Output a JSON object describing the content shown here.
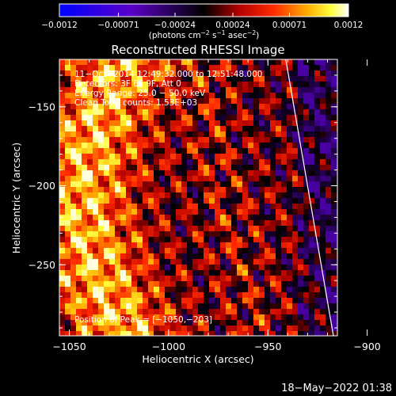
{
  "chart_data": {
    "type": "heatmap",
    "title": "Reconstructed RHESSI Image",
    "xlabel": "Heliocentric X (arcsec)",
    "ylabel": "Heliocentric Y (arcsec)",
    "xlim": [
      -1055,
      -915
    ],
    "ylim": [
      -295,
      -120
    ],
    "x_ticks": [
      {
        "value": -1050,
        "label": "−1050"
      },
      {
        "value": -1000,
        "label": "−1000"
      },
      {
        "value": -950,
        "label": "−950"
      },
      {
        "value": -900,
        "label": "−900"
      }
    ],
    "y_ticks": [
      {
        "value": -150,
        "label": "−150"
      },
      {
        "value": -200,
        "label": "−200"
      },
      {
        "value": -250,
        "label": "−250"
      }
    ],
    "colorbar": {
      "range": [
        -0.0012,
        0.0012
      ],
      "colormap": "blue-purple-red-yellow-white",
      "ticks": [
        {
          "value": -0.0012,
          "label": "−0.0012"
        },
        {
          "value": -0.00071,
          "label": "−0.00071"
        },
        {
          "value": -0.00024,
          "label": "−0.00024"
        },
        {
          "value": 0.00024,
          "label": "0.00024"
        },
        {
          "value": 0.00071,
          "label": "0.00071"
        },
        {
          "value": 0.0012,
          "label": "0.0012"
        }
      ],
      "units": {
        "base1": "(photons cm",
        "sup1": "−2",
        "base2": " s",
        "sup2": "−1",
        "base3": " asec",
        "sup3": "−2",
        "base4": ")"
      }
    },
    "annotations": {
      "time": "11−Oct−2014 12:49:32.000 to 12:51:48.000",
      "detectors": "Detectors: 3F 6F 9F, Att 0",
      "energy": "Energy Range: 25.0 − 50.0 keV",
      "clean": "Clean    Total counts: 1.53E+03",
      "peak": "Position of Peak = [−1050,−203]"
    },
    "limb_line": {
      "x": [
        -941,
        -917
      ],
      "y": [
        -120,
        -295
      ]
    },
    "timestamp": "18−May−2022 01:38"
  }
}
